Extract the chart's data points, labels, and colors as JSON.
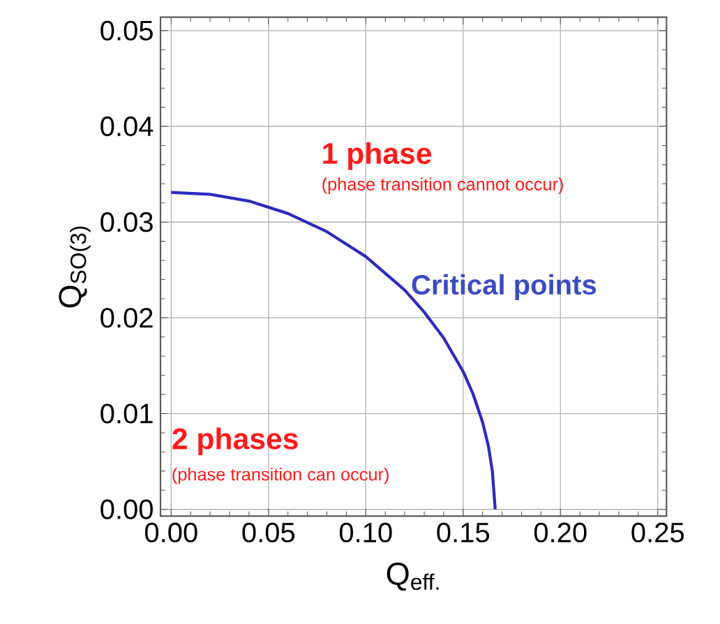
{
  "chart_data": {
    "type": "line",
    "xlabel": "Q$_{eff.}$",
    "ylabel": "Q$_{SO(3)}$",
    "xlim": [
      -0.0055,
      0.2545
    ],
    "ylim": [
      -0.0007,
      0.0514
    ],
    "xticks": [
      {
        "value": 0,
        "label": "0.00"
      },
      0.05,
      {
        "value": 0.1,
        "label": "0.10"
      },
      0.15,
      {
        "value": 0.2,
        "label": "0.20"
      },
      0.25
    ],
    "yticks": [
      {
        "value": 0,
        "label": "0.00"
      },
      0.01,
      0.02,
      0.03,
      0.04,
      0.05
    ],
    "grid": true,
    "x": [
      0,
      0.02,
      0.04,
      0.06,
      0.08,
      0.1,
      0.12,
      0.13,
      0.14,
      0.15,
      0.155,
      0.16,
      0.163,
      0.165,
      0.1665
    ],
    "series": [
      {
        "color": "#2b2bbf",
        "values": [
          0.0331,
          0.0329,
          0.0322,
          0.0309,
          0.029,
          0.0264,
          0.0229,
          0.0206,
          0.0179,
          0.0144,
          0.0121,
          0.0091,
          0.0066,
          0.004,
          0.0
        ]
      }
    ],
    "annotations": [
      "1 phase",
      "(phase transition cannot occur)",
      "Critical points",
      "2 phases",
      "(phase transition can occur)"
    ]
  }
}
